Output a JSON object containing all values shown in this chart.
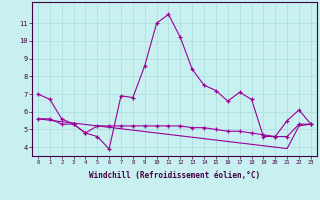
{
  "xlabel": "Windchill (Refroidissement éolien,°C)",
  "background_color": "#c8f0f0",
  "grid_color": "#b0e0e0",
  "line_color": "#990099",
  "x_hours": [
    0,
    1,
    2,
    3,
    4,
    5,
    6,
    7,
    8,
    9,
    10,
    11,
    12,
    13,
    14,
    15,
    16,
    17,
    18,
    19,
    20,
    21,
    22,
    23
  ],
  "y_temp": [
    7.0,
    6.7,
    5.6,
    5.3,
    4.8,
    4.6,
    3.9,
    6.9,
    6.8,
    8.6,
    11.0,
    11.5,
    10.2,
    8.4,
    7.5,
    7.2,
    6.6,
    7.1,
    6.7,
    4.6,
    4.6,
    5.5,
    6.1,
    5.3
  ],
  "y_wind": [
    5.6,
    5.6,
    5.3,
    5.3,
    4.8,
    5.2,
    5.2,
    5.2,
    5.2,
    5.2,
    5.2,
    5.2,
    5.2,
    5.1,
    5.1,
    5.0,
    4.9,
    4.9,
    4.8,
    4.7,
    4.6,
    4.6,
    5.3,
    5.3
  ],
  "y_linear": [
    5.6,
    5.52,
    5.44,
    5.36,
    5.28,
    5.2,
    5.12,
    5.04,
    4.96,
    4.88,
    4.8,
    4.72,
    4.64,
    4.56,
    4.48,
    4.4,
    4.32,
    4.24,
    4.16,
    4.08,
    4.0,
    3.92,
    5.2,
    5.3
  ],
  "ylim": [
    3.5,
    12.2
  ],
  "yticks": [
    4,
    5,
    6,
    7,
    8,
    9,
    10,
    11
  ],
  "xlim": [
    -0.5,
    23.5
  ]
}
